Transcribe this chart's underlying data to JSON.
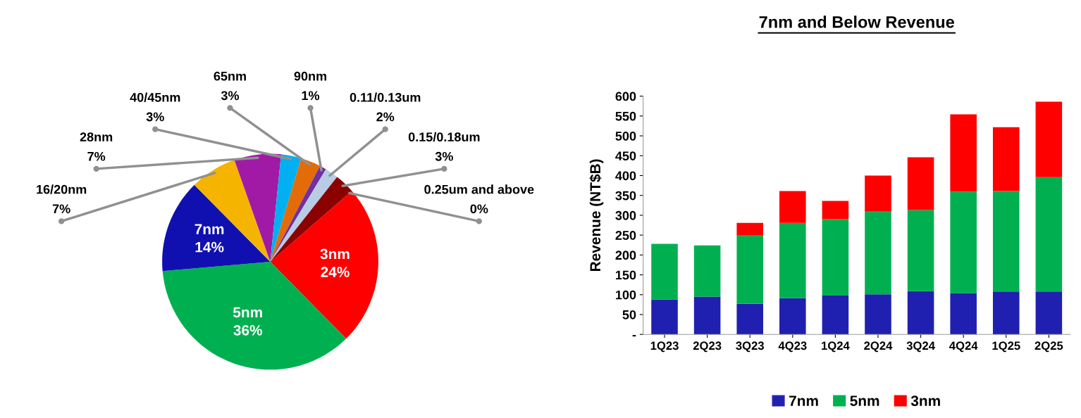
{
  "chart_data": [
    {
      "type": "pie",
      "categories": [
        "3nm",
        "5nm",
        "7nm",
        "16/20nm",
        "28nm",
        "40/45nm",
        "65nm",
        "90nm",
        "0.11/0.13um",
        "0.15/0.18um",
        "0.25um and above"
      ],
      "values": [
        24,
        36,
        14,
        7,
        7,
        3,
        3,
        1,
        2,
        3,
        0
      ],
      "value_labels": [
        "24%",
        "36%",
        "14%",
        "7%",
        "7%",
        "3%",
        "3%",
        "1%",
        "2%",
        "3%",
        "0%"
      ],
      "colors": [
        "#ff0000",
        "#00b050",
        "#1010b0",
        "#f5b400",
        "#a01aa6",
        "#00b0f0",
        "#e36c09",
        "#7030a0",
        "#b8cce4",
        "#8b0000",
        "#404040"
      ]
    },
    {
      "type": "bar",
      "title": "7nm and Below Revenue",
      "ylabel": "Revenue (NT$B)",
      "stacked": true,
      "categories": [
        "1Q23",
        "2Q23",
        "3Q23",
        "4Q23",
        "1Q24",
        "2Q24",
        "3Q24",
        "4Q24",
        "1Q25",
        "2Q25"
      ],
      "series": [
        {
          "name": "7nm",
          "color": "#2020b0",
          "values": [
            88,
            95,
            77,
            91,
            98,
            101,
            109,
            104,
            108,
            108
          ]
        },
        {
          "name": "5nm",
          "color": "#00b050",
          "values": [
            140,
            129,
            172,
            190,
            192,
            208,
            204,
            255,
            253,
            288
          ]
        },
        {
          "name": "3nm",
          "color": "#ff0000",
          "values": [
            null,
            null,
            32,
            80,
            46,
            91,
            133,
            195,
            161,
            190
          ]
        }
      ],
      "ylim": [
        0,
        600
      ],
      "yticks": [
        {
          "value": 0,
          "label": "-"
        },
        50,
        100,
        150,
        200,
        250,
        300,
        350,
        400,
        450,
        500,
        550,
        600
      ],
      "grid": false,
      "legend": "bottom"
    }
  ]
}
